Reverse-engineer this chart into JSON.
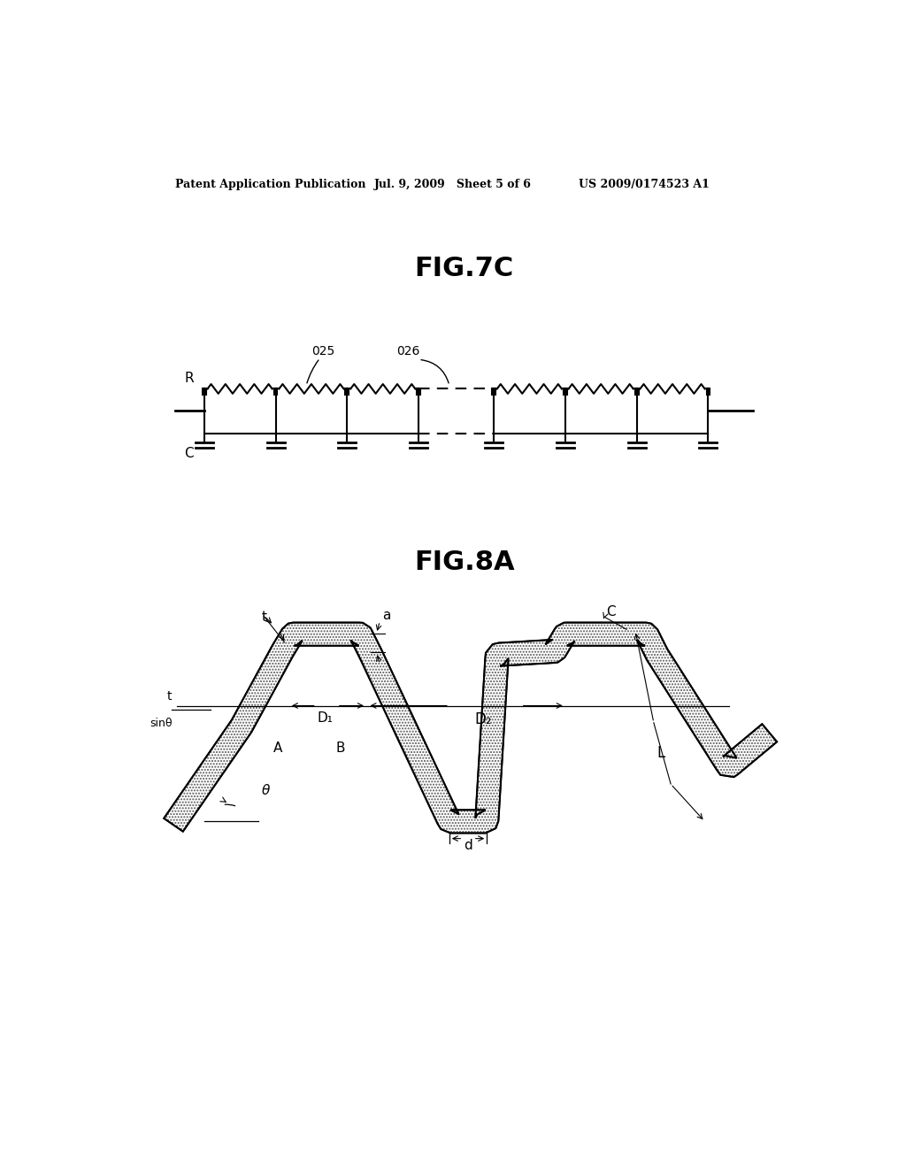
{
  "bg_color": "#ffffff",
  "header_left": "Patent Application Publication",
  "header_mid": "Jul. 9, 2009   Sheet 5 of 6",
  "header_right": "US 2009/0174523 A1",
  "fig7c_title": "FIG.7C",
  "fig8a_title": "FIG.8A",
  "header_font_size": 9,
  "title_font_size": 22
}
